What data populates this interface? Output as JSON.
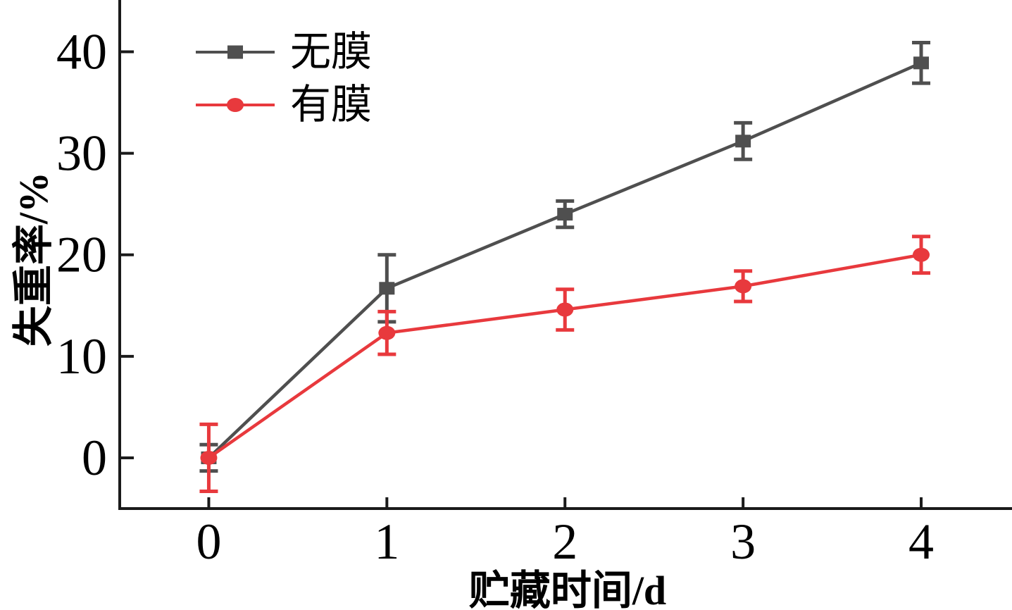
{
  "colors": {
    "background": "#ffffff",
    "axis": "#1a1a1a",
    "text": "#000000"
  },
  "chart_data": {
    "type": "line",
    "title": "",
    "xlabel": "贮藏时间/d",
    "ylabel": "失重率/%",
    "x": [
      0,
      1,
      2,
      3,
      4
    ],
    "xlim": [
      -0.5,
      4.51
    ],
    "ylim": [
      -5,
      45.1
    ],
    "grid": false,
    "xticks": [
      "0",
      "1",
      "2",
      "3",
      "4"
    ],
    "yticks": [
      "0",
      "10",
      "20",
      "30",
      "40"
    ],
    "ytick_values": [
      0,
      10,
      20,
      30,
      40
    ],
    "xtick_values": [
      0,
      1,
      2,
      3,
      4
    ],
    "error_bars": true,
    "legend": {
      "position": "upper-left"
    },
    "series": [
      {
        "name": "无膜",
        "marker": "square",
        "color": "#4f4f4f",
        "values": [
          0,
          16.7,
          24.0,
          31.2,
          38.9
        ],
        "errors": [
          1.3,
          3.3,
          1.3,
          1.8,
          2.0
        ]
      },
      {
        "name": "有膜",
        "marker": "circle",
        "color": "#e8393d",
        "values": [
          0,
          12.3,
          14.6,
          16.9,
          20.0
        ],
        "errors": [
          3.3,
          2.1,
          2.0,
          1.5,
          1.8
        ]
      }
    ]
  }
}
